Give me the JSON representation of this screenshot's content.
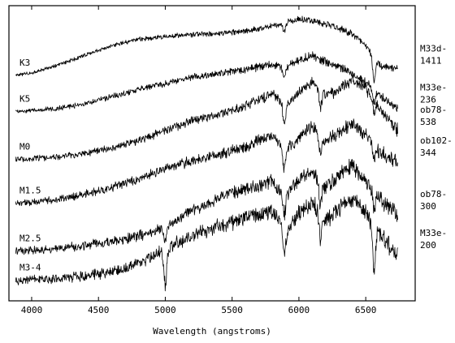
{
  "chart_data": {
    "type": "line",
    "title": "",
    "xlabel": "Wavelength (angstroms)",
    "ylabel": "",
    "xlim": [
      3830,
      6870
    ],
    "ylim": [
      -0.2,
      7.0
    ],
    "x_ticks": [
      4000,
      4500,
      5000,
      5500,
      6000,
      6500
    ],
    "x_tick_labels": [
      "4000",
      "4500",
      "5000",
      "5500",
      "6000",
      "6500"
    ],
    "grid": false,
    "legend": "none",
    "spectrum_x_range": [
      3880,
      6740
    ],
    "series": [
      {
        "name": "K3",
        "comparison_label": "M33d-1411",
        "x": [
          3880,
          4000,
          4200,
          4400,
          4600,
          4800,
          5000,
          5200,
          5400,
          5600,
          5800,
          6000,
          6100,
          6200,
          6300,
          6400,
          6500,
          6560,
          6600,
          6740
        ],
        "y": [
          5.3,
          5.36,
          5.55,
          5.8,
          6.02,
          6.18,
          6.25,
          6.3,
          6.32,
          6.38,
          6.5,
          6.68,
          6.62,
          6.55,
          6.45,
          6.3,
          6.05,
          5.7,
          5.55,
          5.45
        ],
        "features": [
          {
            "x": 5890,
            "depth": 0.2
          },
          {
            "x": 6563,
            "depth": 0.55
          }
        ]
      },
      {
        "name": "K5",
        "comparison_label": "M33e-236",
        "x": [
          3880,
          4000,
          4200,
          4400,
          4600,
          4800,
          5000,
          5200,
          5400,
          5600,
          5800,
          5900,
          6000,
          6100,
          6200,
          6300,
          6400,
          6500,
          6600,
          6740
        ],
        "y": [
          4.42,
          4.44,
          4.5,
          4.6,
          4.78,
          4.95,
          5.1,
          5.25,
          5.35,
          5.45,
          5.55,
          5.5,
          5.68,
          5.78,
          5.62,
          5.5,
          5.35,
          5.12,
          4.85,
          4.5
        ],
        "features": [
          {
            "x": 5890,
            "depth": 0.3
          },
          {
            "x": 6563,
            "depth": 0.35
          }
        ]
      },
      {
        "name": "M0",
        "comparison_label": "ob78-538",
        "x": [
          3880,
          4000,
          4200,
          4400,
          4600,
          4800,
          5000,
          5200,
          5400,
          5600,
          5800,
          5900,
          6000,
          6100,
          6200,
          6300,
          6400,
          6500,
          6600,
          6740
        ],
        "y": [
          3.25,
          3.27,
          3.32,
          3.4,
          3.52,
          3.7,
          3.95,
          4.2,
          4.35,
          4.55,
          4.85,
          4.55,
          4.9,
          5.15,
          4.8,
          4.95,
          5.2,
          5.0,
          4.5,
          3.95
        ],
        "features": [
          {
            "x": 5890,
            "depth": 0.4
          },
          {
            "x": 6160,
            "depth": 0.4
          },
          {
            "x": 6563,
            "depth": 0.35
          }
        ]
      },
      {
        "name": "M1.5",
        "comparison_label": "ob102-344",
        "x": [
          3880,
          4000,
          4200,
          4400,
          4600,
          4800,
          5000,
          5200,
          5400,
          5600,
          5800,
          5900,
          6000,
          6100,
          6200,
          6300,
          6400,
          6500,
          6600,
          6740
        ],
        "y": [
          2.18,
          2.2,
          2.28,
          2.4,
          2.56,
          2.78,
          3.02,
          3.22,
          3.38,
          3.55,
          3.85,
          3.45,
          3.8,
          4.05,
          3.7,
          3.9,
          4.15,
          3.85,
          3.45,
          3.2
        ],
        "features": [
          {
            "x": 5890,
            "depth": 0.45
          },
          {
            "x": 6160,
            "depth": 0.45
          },
          {
            "x": 6563,
            "depth": 0.35
          }
        ]
      },
      {
        "name": "M2.5",
        "comparison_label": "ob78-300",
        "x": [
          3880,
          4000,
          4200,
          4400,
          4600,
          4800,
          5000,
          5200,
          5400,
          5600,
          5800,
          5900,
          6000,
          6100,
          6200,
          6300,
          6400,
          6500,
          6600,
          6740
        ],
        "y": [
          1.02,
          1.03,
          1.08,
          1.15,
          1.25,
          1.38,
          1.6,
          1.98,
          2.3,
          2.55,
          2.7,
          2.35,
          2.75,
          3.0,
          2.55,
          2.85,
          3.15,
          2.7,
          2.3,
          1.9
        ],
        "features": [
          {
            "x": 5000,
            "depth": 0.35
          },
          {
            "x": 5890,
            "depth": 0.5
          },
          {
            "x": 6160,
            "depth": 0.55
          },
          {
            "x": 6563,
            "depth": 0.4
          }
        ]
      },
      {
        "name": "M3-4",
        "comparison_label": "M33e-200",
        "x": [
          3880,
          4000,
          4200,
          4400,
          4600,
          4800,
          5000,
          5200,
          5400,
          5600,
          5800,
          5900,
          6000,
          6100,
          6200,
          6300,
          6400,
          6500,
          6600,
          6740
        ],
        "y": [
          0.3,
          0.31,
          0.34,
          0.4,
          0.5,
          0.72,
          1.05,
          1.4,
          1.62,
          1.82,
          2.0,
          1.45,
          1.95,
          2.2,
          1.75,
          2.05,
          2.3,
          1.95,
          1.45,
          0.95
        ],
        "features": [
          {
            "x": 5000,
            "depth": 0.85
          },
          {
            "x": 5890,
            "depth": 0.55
          },
          {
            "x": 6160,
            "depth": 0.55
          },
          {
            "x": 6563,
            "depth": 1.1
          }
        ]
      }
    ]
  }
}
